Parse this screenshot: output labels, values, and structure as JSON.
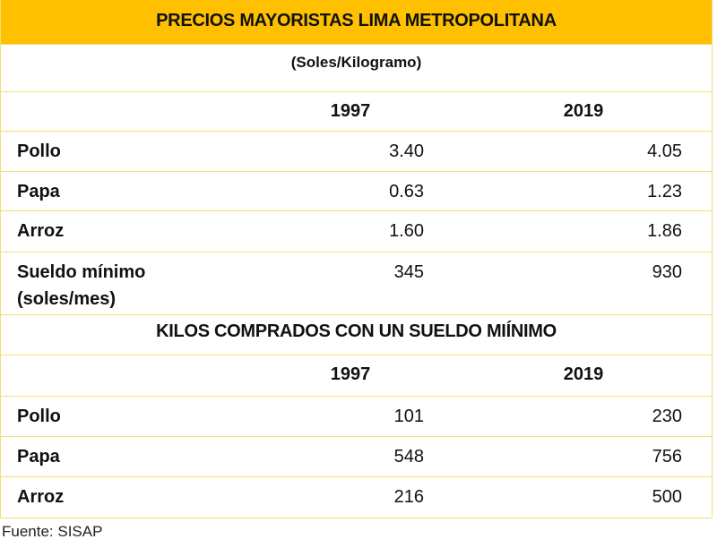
{
  "title": "PRECIOS MAYORISTAS LIMA METROPOLITANA",
  "subtitle": "(Soles/Kilogramo)",
  "years": [
    "1997",
    "2019"
  ],
  "prices": [
    {
      "label": "Pollo",
      "v1997": "3.40",
      "v2019": "4.05"
    },
    {
      "label": "Papa",
      "v1997": "0.63",
      "v2019": "1.23"
    },
    {
      "label": "Arroz",
      "v1997": "1.60",
      "v2019": "1.86"
    },
    {
      "label": "Sueldo mínimo",
      "label2": "(soles/mes)",
      "v1997": "345",
      "v2019": "930"
    }
  ],
  "section2_title": "KILOS COMPRADOS CON UN SUELDO MIÍNIMO",
  "kilos": [
    {
      "label": "Pollo",
      "v1997": "101",
      "v2019": "230"
    },
    {
      "label": "Papa",
      "v1997": "548",
      "v2019": "756"
    },
    {
      "label": "Arroz",
      "v1997": "216",
      "v2019": "500"
    }
  ],
  "source": "Fuente: SISAP",
  "colors": {
    "header": "#ffc000",
    "border": "#f2df78"
  }
}
